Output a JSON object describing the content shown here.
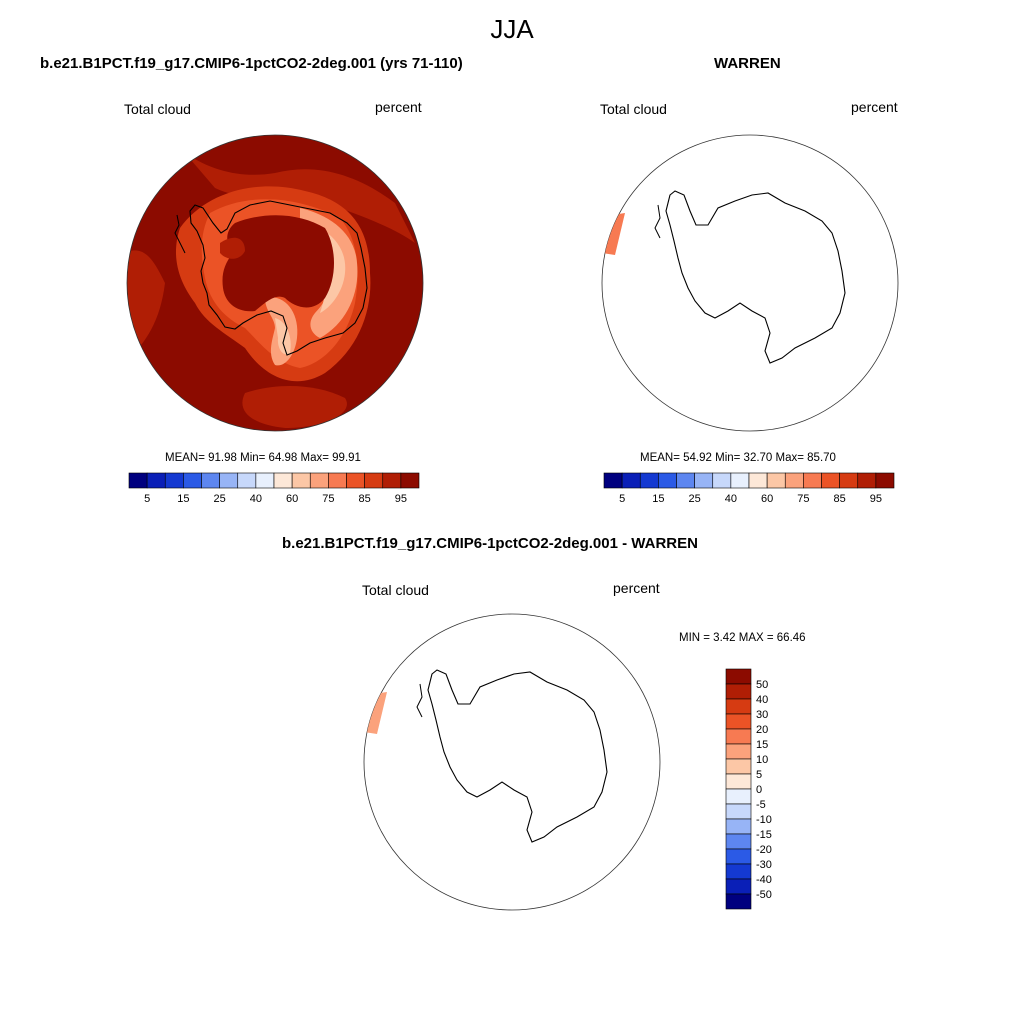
{
  "figure": {
    "main_title": "JJA"
  },
  "panels": {
    "model": {
      "title": "b.e21.B1PCT.f19_g17.CMIP6-1pctCO2-2deg.001 (yrs 71-110)",
      "variable": "Total cloud",
      "units": "percent",
      "stats": "MEAN=  91.98  Min=  64.98  Max=  99.91"
    },
    "obs": {
      "title": "WARREN",
      "variable": "Total cloud",
      "units": "percent",
      "stats": "MEAN=  54.92  Min=  32.70  Max=  85.70"
    },
    "diff": {
      "title": "b.e21.B1PCT.f19_g17.CMIP6-1pctCO2-2deg.001 - WARREN",
      "variable": "Total cloud",
      "units": "percent",
      "stats": "MIN =   3.42 MAX =  66.46"
    }
  },
  "chart_data": [
    {
      "type": "heatmap",
      "projection": "south-polar-stereographic",
      "title": "b.e21.B1PCT.f19_g17.CMIP6-1pctCO2-2deg.001 (yrs 71-110)",
      "field": "Total cloud",
      "units": "percent",
      "mean": 91.98,
      "min": 64.98,
      "max": 99.91,
      "colorbar": {
        "orientation": "horizontal",
        "tick_labels": [
          "5",
          "15",
          "25",
          "40",
          "60",
          "75",
          "85",
          "95"
        ],
        "colors": [
          "#00007f",
          "#0a1fb7",
          "#1439d1",
          "#2b5ae6",
          "#5d86f0",
          "#97b4f6",
          "#c7d8fb",
          "#e8f0fd",
          "#fde8d8",
          "#fcc7a6",
          "#fba27c",
          "#f77a52",
          "#eb5326",
          "#d63b12",
          "#b01e05",
          "#8c0b00"
        ]
      }
    },
    {
      "type": "heatmap",
      "projection": "south-polar-stereographic",
      "title": "WARREN",
      "field": "Total cloud",
      "units": "percent",
      "mean": 54.92,
      "min": 32.7,
      "max": 85.7,
      "colorbar": {
        "orientation": "horizontal",
        "tick_labels": [
          "5",
          "15",
          "25",
          "40",
          "60",
          "75",
          "85",
          "95"
        ],
        "colors": [
          "#00007f",
          "#0a1fb7",
          "#1439d1",
          "#2b5ae6",
          "#5d86f0",
          "#97b4f6",
          "#c7d8fb",
          "#e8f0fd",
          "#fde8d8",
          "#fcc7a6",
          "#fba27c",
          "#f77a52",
          "#eb5326",
          "#d63b12",
          "#b01e05",
          "#8c0b00"
        ]
      }
    },
    {
      "type": "heatmap",
      "projection": "south-polar-stereographic",
      "title": "b.e21.B1PCT.f19_g17.CMIP6-1pctCO2-2deg.001 - WARREN",
      "field": "Total cloud",
      "units": "percent",
      "min": 3.42,
      "max": 66.46,
      "colorbar": {
        "orientation": "vertical",
        "tick_labels": [
          "50",
          "40",
          "30",
          "20",
          "15",
          "10",
          "5",
          "0",
          "-5",
          "-10",
          "-15",
          "-20",
          "-30",
          "-40",
          "-50"
        ],
        "colors": [
          "#8c0b00",
          "#b01e05",
          "#d63b12",
          "#eb5326",
          "#f77a52",
          "#fba27c",
          "#fcc7a6",
          "#fde8d8",
          "#e8f0fd",
          "#c7d8fb",
          "#97b4f6",
          "#5d86f0",
          "#2b5ae6",
          "#1439d1",
          "#0a1fb7",
          "#00007f"
        ]
      }
    }
  ]
}
